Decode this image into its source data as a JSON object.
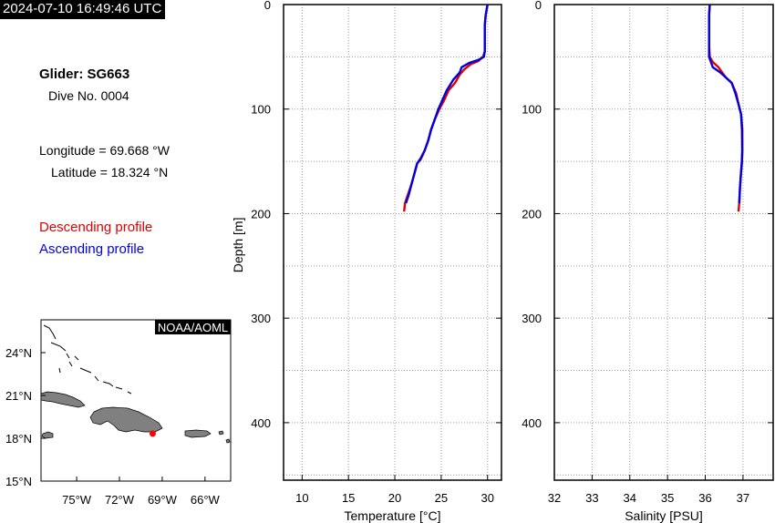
{
  "header": {
    "timestamp": "2024-07-10 16:49:46 UTC"
  },
  "info": {
    "glider": "Glider: SG663",
    "dive": "Dive No. 0004",
    "longitude": "Longitude = 69.668 °W",
    "latitude": "Latitude = 18.324 °N",
    "descending_label": "Descending profile",
    "ascending_label": "Ascending profile"
  },
  "colors": {
    "descending": "#e00000",
    "ascending": "#0000dd",
    "land": "#808080",
    "location_marker": "#ff0000"
  },
  "map": {
    "credit": "NOAA/AOML",
    "lon_ticks": [
      "75°W",
      "72°W",
      "69°W",
      "66°W"
    ],
    "lat_ticks": [
      "24°N",
      "21°N",
      "18°N",
      "15°N"
    ],
    "marker": {
      "lon": -69.668,
      "lat": 18.324
    }
  },
  "chart_data": [
    {
      "type": "line",
      "xlabel": "Temperature [°C]",
      "ylabel": "Depth [m]",
      "xlim": [
        8,
        31.5
      ],
      "ylim": [
        455,
        0
      ],
      "x_ticks": [
        10,
        15,
        20,
        25,
        30
      ],
      "y_ticks": [
        0,
        100,
        200,
        300,
        400
      ],
      "grid": true,
      "series": [
        {
          "name": "Descending profile",
          "color": "#e00000",
          "points": [
            [
              30.0,
              0
            ],
            [
              29.8,
              10
            ],
            [
              29.7,
              20
            ],
            [
              29.7,
              30
            ],
            [
              29.7,
              45
            ],
            [
              29.5,
              50
            ],
            [
              29.0,
              54
            ],
            [
              28.2,
              57
            ],
            [
              27.5,
              62
            ],
            [
              27.0,
              67
            ],
            [
              26.5,
              75
            ],
            [
              25.8,
              82
            ],
            [
              25.3,
              92
            ],
            [
              24.8,
              100
            ],
            [
              24.3,
              110
            ],
            [
              23.9,
              120
            ],
            [
              23.6,
              130
            ],
            [
              23.2,
              140
            ],
            [
              22.8,
              148
            ],
            [
              22.4,
              152
            ],
            [
              22.1,
              162
            ],
            [
              21.8,
              172
            ],
            [
              21.4,
              182
            ],
            [
              21.1,
              190
            ],
            [
              21.0,
              198
            ]
          ]
        },
        {
          "name": "Ascending profile",
          "color": "#0000dd",
          "points": [
            [
              30.0,
              0
            ],
            [
              29.8,
              10
            ],
            [
              29.7,
              20
            ],
            [
              29.7,
              30
            ],
            [
              29.7,
              45
            ],
            [
              29.6,
              50
            ],
            [
              29.0,
              53
            ],
            [
              28.0,
              56
            ],
            [
              27.2,
              60
            ],
            [
              27.0,
              65
            ],
            [
              26.3,
              72
            ],
            [
              25.6,
              82
            ],
            [
              25.1,
              92
            ],
            [
              24.7,
              100
            ],
            [
              24.3,
              110
            ],
            [
              23.9,
              120
            ],
            [
              23.6,
              130
            ],
            [
              23.2,
              140
            ],
            [
              22.8,
              147
            ],
            [
              22.4,
              152
            ],
            [
              22.1,
              162
            ],
            [
              21.8,
              172
            ],
            [
              21.5,
              182
            ],
            [
              21.2,
              190
            ]
          ]
        }
      ]
    },
    {
      "type": "line",
      "xlabel": "Salinity [PSU]",
      "ylabel": "",
      "xlim": [
        32,
        37.8
      ],
      "ylim": [
        455,
        0
      ],
      "x_ticks": [
        32,
        33,
        34,
        35,
        36,
        37
      ],
      "y_ticks": [
        0,
        100,
        200,
        300,
        400
      ],
      "grid": true,
      "series": [
        {
          "name": "Descending profile",
          "color": "#e00000",
          "points": [
            [
              36.12,
              0
            ],
            [
              36.1,
              10
            ],
            [
              36.1,
              25
            ],
            [
              36.1,
              40
            ],
            [
              36.12,
              50
            ],
            [
              36.2,
              55
            ],
            [
              36.35,
              60
            ],
            [
              36.45,
              65
            ],
            [
              36.55,
              70
            ],
            [
              36.7,
              75
            ],
            [
              36.82,
              85
            ],
            [
              36.88,
              95
            ],
            [
              36.95,
              105
            ],
            [
              36.97,
              120
            ],
            [
              36.98,
              140
            ],
            [
              36.97,
              150
            ],
            [
              36.95,
              160
            ],
            [
              36.92,
              175
            ],
            [
              36.9,
              190
            ],
            [
              36.88,
              198
            ]
          ]
        },
        {
          "name": "Ascending profile",
          "color": "#0000dd",
          "points": [
            [
              36.12,
              0
            ],
            [
              36.1,
              10
            ],
            [
              36.1,
              25
            ],
            [
              36.1,
              40
            ],
            [
              36.1,
              50
            ],
            [
              36.15,
              55
            ],
            [
              36.2,
              60
            ],
            [
              36.4,
              65
            ],
            [
              36.55,
              70
            ],
            [
              36.7,
              75
            ],
            [
              36.8,
              85
            ],
            [
              36.88,
              95
            ],
            [
              36.95,
              105
            ],
            [
              36.98,
              120
            ],
            [
              36.98,
              140
            ],
            [
              36.97,
              150
            ],
            [
              36.95,
              160
            ],
            [
              36.92,
              175
            ],
            [
              36.9,
              190
            ]
          ]
        }
      ]
    }
  ]
}
